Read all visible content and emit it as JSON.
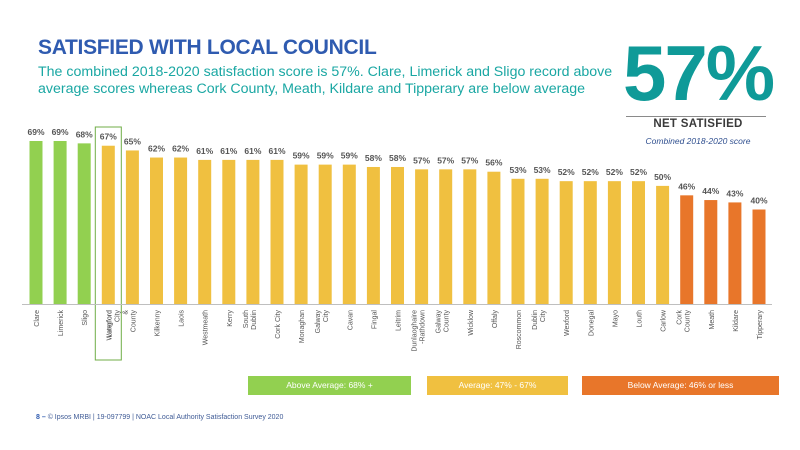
{
  "header": {
    "title": "SATISFIED WITH LOCAL COUNCIL",
    "subtitle": "The combined 2018-2020 satisfaction score is 57%. Clare, Limerick and Sligo record above average scores whereas Cork County, Meath, Kildare and Tipperary are below average"
  },
  "kpi": {
    "value": "57%",
    "label": "NET SATISFIED",
    "caption": "Combined 2018-2020 score"
  },
  "legend": {
    "above": "Above Average: 68% +",
    "average": "Average: 47% - 67%",
    "below": "Below Average: 46% or less"
  },
  "footer": {
    "page": "8",
    "dash": " – ",
    "text": "© Ipsos MRBI | 19-097799 | NOAC Local Authority Satisfaction Survey 2020"
  },
  "colors": {
    "above": "#92d050",
    "average": "#f0c040",
    "below": "#e8762a",
    "highlight_border": "#70ad47",
    "title": "#2f5bb0",
    "teal": "#0f9a98"
  },
  "chart_data": {
    "type": "bar",
    "title": "SATISFIED WITH LOCAL COUNCIL",
    "ylim": [
      0,
      69
    ],
    "grid": false,
    "highlight": "Longford",
    "categories": [
      {
        "label": "Clare",
        "value": 69,
        "group": "above"
      },
      {
        "label": "Limerick",
        "value": 69,
        "group": "above"
      },
      {
        "label": "Sligo",
        "value": 68,
        "group": "above"
      },
      {
        "label": "Longford",
        "value": 67,
        "group": "average"
      },
      {
        "label": "Waterford City & County",
        "value": 65,
        "group": "average"
      },
      {
        "label": "Kilkenny",
        "value": 62,
        "group": "average"
      },
      {
        "label": "Laois",
        "value": 62,
        "group": "average"
      },
      {
        "label": "Westmeath",
        "value": 61,
        "group": "average"
      },
      {
        "label": "Kerry",
        "value": 61,
        "group": "average"
      },
      {
        "label": "South Dublin",
        "value": 61,
        "group": "average"
      },
      {
        "label": "Cork City",
        "value": 61,
        "group": "average"
      },
      {
        "label": "Monaghan",
        "value": 59,
        "group": "average"
      },
      {
        "label": "Galway City",
        "value": 59,
        "group": "average"
      },
      {
        "label": "Cavan",
        "value": 59,
        "group": "average"
      },
      {
        "label": "Fingal",
        "value": 58,
        "group": "average"
      },
      {
        "label": "Leitrim",
        "value": 58,
        "group": "average"
      },
      {
        "label": "Dunlaoghaire -Rathdown",
        "value": 57,
        "group": "average"
      },
      {
        "label": "Galway County",
        "value": 57,
        "group": "average"
      },
      {
        "label": "Wicklow",
        "value": 57,
        "group": "average"
      },
      {
        "label": "Offaly",
        "value": 56,
        "group": "average"
      },
      {
        "label": "Roscommon",
        "value": 53,
        "group": "average"
      },
      {
        "label": "Dublin City",
        "value": 53,
        "group": "average"
      },
      {
        "label": "Wexford",
        "value": 52,
        "group": "average"
      },
      {
        "label": "Donegal",
        "value": 52,
        "group": "average"
      },
      {
        "label": "Mayo",
        "value": 52,
        "group": "average"
      },
      {
        "label": "Louth",
        "value": 52,
        "group": "average"
      },
      {
        "label": "Carlow",
        "value": 50,
        "group": "average"
      },
      {
        "label": "Cork County",
        "value": 46,
        "group": "below"
      },
      {
        "label": "Meath",
        "value": 44,
        "group": "below"
      },
      {
        "label": "Kildare",
        "value": 43,
        "group": "below"
      },
      {
        "label": "Tipperary",
        "value": 40,
        "group": "below"
      }
    ]
  }
}
